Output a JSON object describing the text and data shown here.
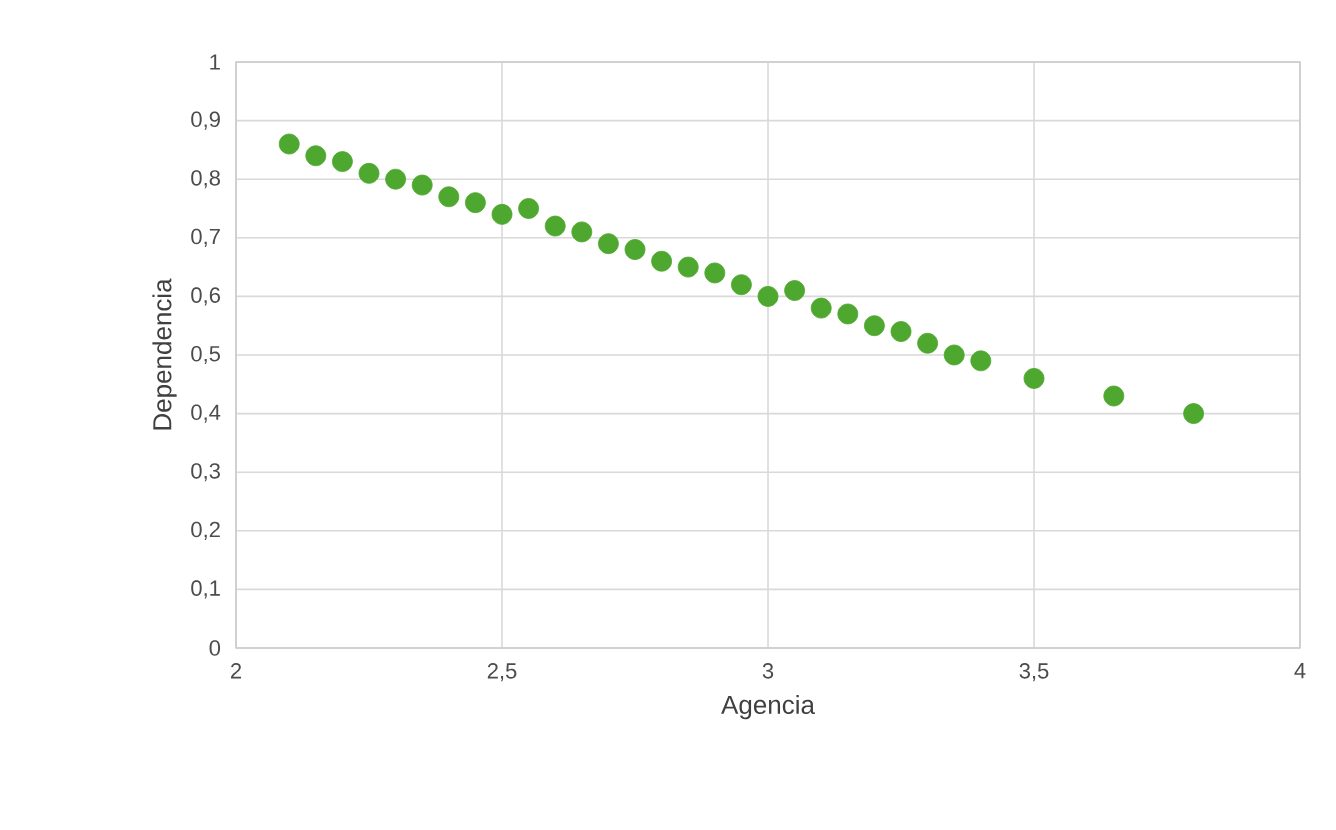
{
  "chart_data": {
    "type": "scatter",
    "xlabel": "Agencia",
    "ylabel": "Dependencia",
    "x": [
      2.1,
      2.15,
      2.2,
      2.25,
      2.3,
      2.35,
      2.4,
      2.45,
      2.5,
      2.55,
      2.6,
      2.65,
      2.7,
      2.75,
      2.8,
      2.85,
      2.9,
      2.95,
      3.0,
      3.05,
      3.1,
      3.15,
      3.2,
      3.25,
      3.3,
      3.35,
      3.4,
      3.5,
      3.65,
      3.8
    ],
    "series": [
      {
        "color": "#4ea72e",
        "values": [
          0.86,
          0.84,
          0.83,
          0.81,
          0.8,
          0.79,
          0.77,
          0.76,
          0.74,
          0.75,
          0.72,
          0.71,
          0.69,
          0.68,
          0.66,
          0.65,
          0.64,
          0.62,
          0.6,
          0.61,
          0.58,
          0.57,
          0.55,
          0.54,
          0.52,
          0.5,
          0.49,
          0.46,
          0.43,
          0.4
        ]
      }
    ],
    "xlim": [
      2,
      4
    ],
    "ylim": [
      0,
      1
    ],
    "xticks": [
      2,
      {
        "value": 2.5,
        "label": "2,5"
      },
      3,
      {
        "value": 3.5,
        "label": "3,5"
      },
      4
    ],
    "yticks": [
      0,
      {
        "value": 0.1,
        "label": "0,1"
      },
      {
        "value": 0.2,
        "label": "0,2"
      },
      {
        "value": 0.3,
        "label": "0,3"
      },
      {
        "value": 0.4,
        "label": "0,4"
      },
      {
        "value": 0.5,
        "label": "0,5"
      },
      {
        "value": 0.6,
        "label": "0,6"
      },
      {
        "value": 0.7,
        "label": "0,7"
      },
      {
        "value": 0.8,
        "label": "0,8"
      },
      {
        "value": 0.9,
        "label": "0,9"
      },
      1
    ],
    "grid": true,
    "marker": "circle"
  }
}
